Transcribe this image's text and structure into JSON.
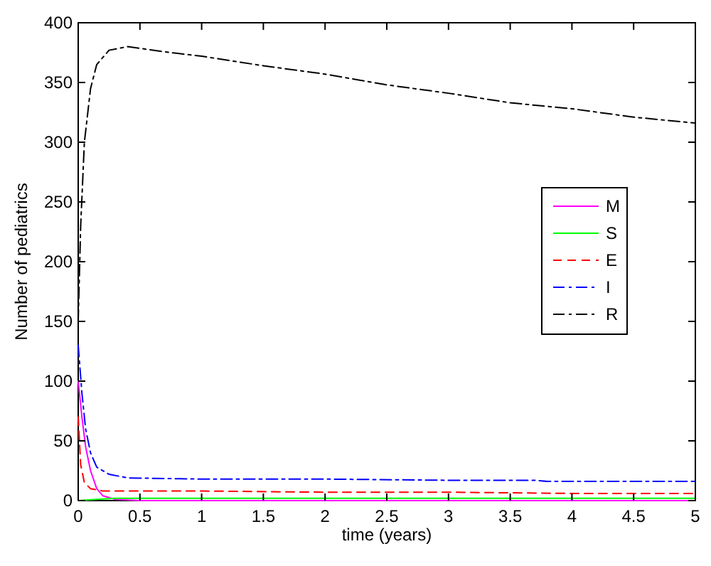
{
  "chart_data": {
    "type": "line",
    "xlabel": "time (years)",
    "ylabel": "Number of pediatrics",
    "xlim": [
      0,
      5
    ],
    "ylim": [
      0,
      400
    ],
    "xticks": [
      0,
      0.5,
      1,
      1.5,
      2,
      2.5,
      3,
      3.5,
      4,
      4.5,
      5
    ],
    "yticks": [
      0,
      50,
      100,
      150,
      200,
      250,
      300,
      350,
      400
    ],
    "legend": "right",
    "grid": false,
    "series": [
      {
        "name": "M",
        "color": "#ff00ff",
        "line_style": "solid",
        "x": [
          0,
          0.03,
          0.06,
          0.1,
          0.15,
          0.2,
          0.3,
          0.5,
          1,
          2,
          3,
          4,
          5
        ],
        "values": [
          100,
          70,
          45,
          25,
          10,
          4,
          1,
          0,
          0,
          0,
          0,
          0,
          0
        ]
      },
      {
        "name": "S",
        "color": "#00ff00",
        "line_style": "solid",
        "x": [
          0,
          0.15,
          0.3,
          1,
          2,
          3,
          4,
          5
        ],
        "values": [
          0,
          1,
          2,
          2,
          2,
          2,
          2,
          2
        ]
      },
      {
        "name": "E",
        "color": "#ff0000",
        "line_style": "dashed",
        "x": [
          0,
          0.02,
          0.05,
          0.1,
          0.2,
          1,
          2,
          3,
          4,
          5
        ],
        "values": [
          70,
          30,
          15,
          10,
          8,
          8,
          7,
          7,
          6,
          6
        ]
      },
      {
        "name": "I",
        "color": "#0000ff",
        "line_style": "dashdot",
        "x": [
          0,
          0.03,
          0.06,
          0.1,
          0.15,
          0.25,
          0.4,
          1,
          2,
          3,
          3.7,
          3.8,
          5
        ],
        "values": [
          130,
          90,
          60,
          40,
          28,
          22,
          19,
          18,
          18,
          17,
          17,
          16,
          16
        ]
      },
      {
        "name": "R",
        "color": "#000000",
        "line_style": "dashdot",
        "x": [
          0,
          0.02,
          0.05,
          0.1,
          0.15,
          0.25,
          0.4,
          0.75,
          1,
          1.5,
          2,
          2.5,
          3,
          3.5,
          4,
          4.5,
          5
        ],
        "values": [
          150,
          230,
          300,
          345,
          365,
          377,
          380,
          375,
          372,
          364,
          357,
          348,
          341,
          333,
          328,
          321,
          316
        ]
      }
    ]
  }
}
